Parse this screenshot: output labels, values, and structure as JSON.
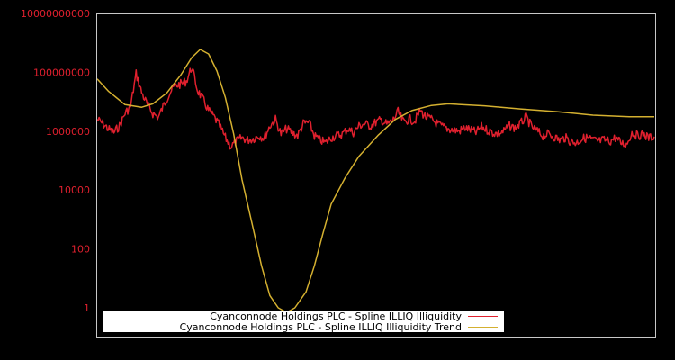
{
  "chart_data": {
    "type": "line",
    "title": "",
    "xlabel": "",
    "ylabel": "",
    "yscale": "log",
    "ylim": [
      0.5,
      10000000000
    ],
    "y_ticks": [
      {
        "label": "10000000000",
        "value": 10000000000
      },
      {
        "label": "100000000",
        "value": 100000000
      },
      {
        "label": "1000000",
        "value": 1000000
      },
      {
        "label": "10000",
        "value": 10000
      },
      {
        "label": "100",
        "value": 100
      },
      {
        "label": "1",
        "value": 1
      }
    ],
    "x_ticks": [],
    "grid": false,
    "legend_position": "bottom-left inside",
    "x_range": [
      0,
      1
    ],
    "series": [
      {
        "name": "Cyanconnode Holdings PLC - Spline ILLIQ Illiquidity",
        "color": "#e0202e",
        "x": [
          0.0,
          0.01,
          0.02,
          0.03,
          0.04,
          0.05,
          0.06,
          0.07,
          0.08,
          0.09,
          0.1,
          0.11,
          0.12,
          0.13,
          0.14,
          0.15,
          0.16,
          0.17,
          0.18,
          0.19,
          0.2,
          0.21,
          0.22,
          0.23,
          0.24,
          0.25,
          0.26,
          0.27,
          0.28,
          0.29,
          0.3,
          0.31,
          0.32,
          0.33,
          0.34,
          0.35,
          0.36,
          0.37,
          0.38,
          0.39,
          0.4,
          0.41,
          0.42,
          0.43,
          0.44,
          0.45,
          0.46,
          0.47,
          0.48,
          0.49,
          0.5,
          0.51,
          0.52,
          0.53,
          0.54,
          0.55,
          0.56,
          0.57,
          0.58,
          0.59,
          0.6,
          0.61,
          0.62,
          0.63,
          0.64,
          0.65,
          0.66,
          0.67,
          0.68,
          0.69,
          0.7,
          0.71,
          0.72,
          0.73,
          0.74,
          0.75,
          0.76,
          0.77,
          0.78,
          0.79,
          0.8,
          0.81,
          0.82,
          0.83,
          0.84,
          0.85,
          0.86,
          0.87,
          0.88,
          0.89,
          0.9,
          0.91,
          0.92,
          0.93,
          0.94,
          0.95,
          0.96,
          0.97,
          0.98,
          0.99,
          1.0
        ],
        "values": [
          2500000,
          1800000,
          1200000,
          900000,
          1500000,
          4000000,
          7000000,
          90000000,
          20000000,
          8000000,
          4000000,
          3000000,
          8000000,
          20000000,
          35000000,
          40000000,
          50000000,
          150000000,
          25000000,
          12000000,
          5000000,
          3000000,
          1500000,
          600000,
          300000,
          450000,
          600000,
          500000,
          550000,
          700000,
          600000,
          1500000,
          2500000,
          800000,
          1200000,
          900000,
          700000,
          1800000,
          2000000,
          700000,
          500000,
          400000,
          600000,
          700000,
          800000,
          1200000,
          900000,
          1500000,
          1800000,
          1500000,
          2000000,
          2400000,
          1700000,
          2200000,
          4500000,
          2000000,
          2600000,
          2200000,
          5000000,
          3000000,
          2500000,
          1800000,
          1400000,
          1200000,
          1100000,
          1000000,
          1300000,
          1100000,
          900000,
          1400000,
          1100000,
          900000,
          800000,
          1000000,
          1500000,
          1300000,
          1800000,
          3000000,
          1400000,
          1000000,
          700000,
          800000,
          650000,
          500000,
          600000,
          450000,
          400000,
          550000,
          600000,
          500000,
          450000,
          500000,
          450000,
          600000,
          400000,
          350000,
          900000,
          700000,
          800000,
          600000,
          650000
        ]
      },
      {
        "name": "Cyanconnode Holdings PLC - Spline ILLIQ Illiquidity Trend",
        "color": "#d4b030",
        "x": [
          0.0,
          0.02,
          0.05,
          0.08,
          0.1,
          0.125,
          0.15,
          0.17,
          0.185,
          0.2,
          0.215,
          0.23,
          0.245,
          0.26,
          0.28,
          0.295,
          0.31,
          0.325,
          0.34,
          0.355,
          0.375,
          0.39,
          0.405,
          0.42,
          0.445,
          0.47,
          0.505,
          0.535,
          0.565,
          0.6,
          0.63,
          0.695,
          0.76,
          0.825,
          0.89,
          0.955,
          1.0
        ],
        "values": [
          60000000,
          23000000,
          8000000,
          6500000,
          8500000,
          20000000,
          80000000,
          320000000,
          600000000,
          420000000,
          110000000,
          14000000,
          800000,
          23000,
          500,
          27,
          2.6,
          1,
          0.7,
          1,
          3.5,
          27,
          320,
          3300,
          26000,
          140000,
          750000,
          2500000,
          5000000,
          7500000,
          8500000,
          7300000,
          5700000,
          4600000,
          3500000,
          3100000,
          3100000
        ]
      }
    ]
  },
  "legend": {
    "items": [
      {
        "label": "Cyanconnode Holdings PLC - Spline ILLIQ Illiquidity",
        "color": "#e0202e"
      },
      {
        "label": "Cyanconnode Holdings PLC - Spline ILLIQ Illiquidity Trend",
        "color": "#d4b030"
      }
    ]
  },
  "colors": {
    "background": "#000000",
    "axis_border": "#c8c8c8",
    "tick_label": "#e0202e",
    "legend_bg": "#ffffff"
  }
}
